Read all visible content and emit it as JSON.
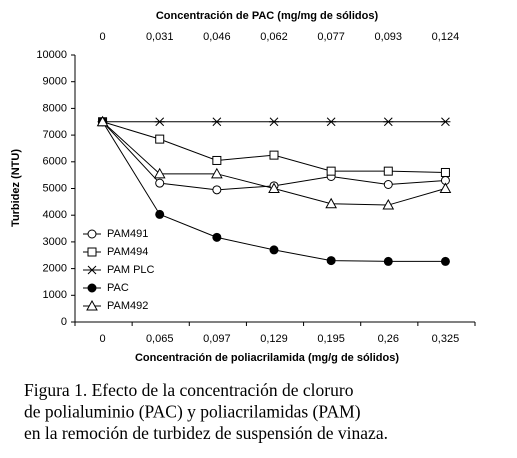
{
  "chart_data": {
    "type": "line",
    "x2_title": "Concentración de PAC (mg/mg de sólidos)",
    "x2_categories": [
      "0",
      "0,031",
      "0,046",
      "0,062",
      "0,077",
      "0,093",
      "0,124"
    ],
    "x_title": "Concentración de poliacrilamida (mg/g de sólidos)",
    "categories": [
      "0",
      "0,065",
      "0,097",
      "0,129",
      "0,195",
      "0,26",
      "0,325"
    ],
    "y_title": "Turbidez (NTU)",
    "ylim": [
      0,
      10000
    ],
    "yticks": [
      0,
      1000,
      2000,
      3000,
      4000,
      5000,
      6000,
      7000,
      8000,
      9000,
      10000
    ],
    "grid": false,
    "legend": "left",
    "series": [
      {
        "name": "PAM491",
        "color": "#000000",
        "marker": "circle",
        "filled": false,
        "values": [
          7500,
          5200,
          4950,
          5100,
          5450,
          5150,
          5300
        ]
      },
      {
        "name": "PAM494",
        "color": "#000000",
        "marker": "square",
        "filled": false,
        "values": [
          7500,
          6850,
          6050,
          6250,
          5650,
          5650,
          5600
        ]
      },
      {
        "name": "PAM PLC",
        "color": "#000000",
        "marker": "star",
        "filled": false,
        "values": [
          7500,
          7500,
          7500,
          7500,
          7500,
          7500,
          7500
        ]
      },
      {
        "name": "PAC",
        "color": "#000000",
        "marker": "circle",
        "filled": true,
        "values": [
          7500,
          4030,
          3170,
          2700,
          2300,
          2270,
          2270
        ]
      },
      {
        "name": "PAM492",
        "color": "#000000",
        "marker": "triangle",
        "filled": false,
        "values": [
          7500,
          5550,
          5550,
          5000,
          4430,
          4380,
          5000
        ]
      }
    ],
    "caption": [
      "Figura 1. Efecto de la concentración de cloruro",
      "de polialuminio (PAC) y poliacrilamidas (PAM)",
      "en la remoción de turbidez de suspensión de vinaza."
    ]
  }
}
